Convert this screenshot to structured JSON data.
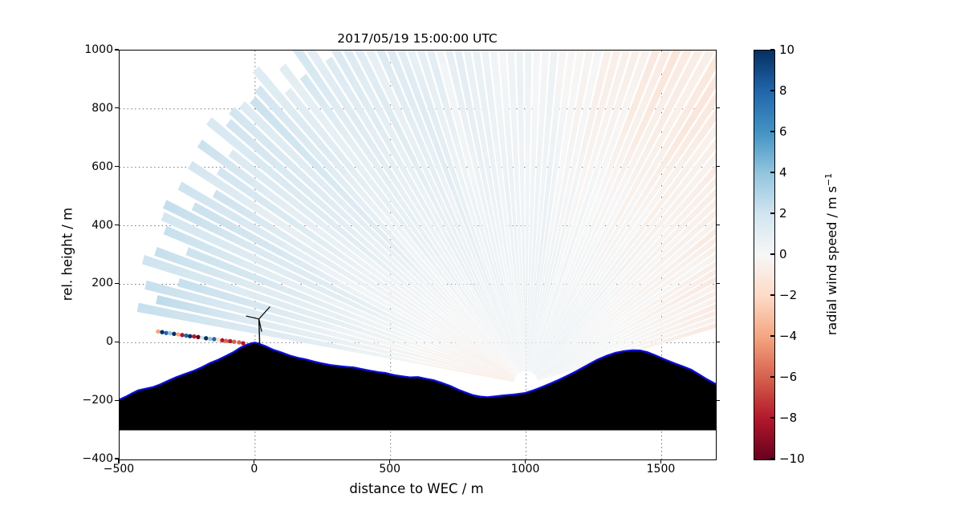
{
  "title": "2017/05/19 15:00:00 UTC",
  "x_axis": {
    "label": "distance to WEC / m",
    "tick_labels": [
      "−500",
      "0",
      "500",
      "1000",
      "1500"
    ],
    "tick_values": [
      -500,
      0,
      500,
      1000,
      1500
    ],
    "range": [
      -500,
      1700
    ]
  },
  "y_axis": {
    "label": "rel. height / m",
    "tick_labels": [
      "1000",
      "800",
      "600",
      "400",
      "200",
      "0",
      "−200",
      "−400"
    ],
    "tick_values": [
      1000,
      800,
      600,
      400,
      200,
      0,
      -200,
      -400
    ],
    "range": [
      -400,
      1000
    ]
  },
  "grid": {
    "x_values": [
      0,
      500,
      1000,
      1500
    ],
    "y_values": [
      800,
      600,
      400,
      200,
      0,
      -200
    ]
  },
  "colorbar": {
    "label": "radial wind speed / m s",
    "label_superscript": "−1",
    "tick_labels": [
      "10",
      "8",
      "6",
      "4",
      "2",
      "0",
      "−2",
      "−4",
      "−6",
      "−8",
      "−10"
    ],
    "tick_values": [
      10,
      8,
      6,
      4,
      2,
      0,
      -2,
      -4,
      -6,
      -8,
      -10
    ],
    "vmin": -10,
    "vmax": 10,
    "colormap_name": "RdBu",
    "colormap_stops": [
      [
        0.0,
        "#67001f"
      ],
      [
        0.1,
        "#b2182b"
      ],
      [
        0.2,
        "#d6604d"
      ],
      [
        0.3,
        "#f4a582"
      ],
      [
        0.4,
        "#fddbc7"
      ],
      [
        0.5,
        "#f7f7f7"
      ],
      [
        0.6,
        "#d1e5f0"
      ],
      [
        0.7,
        "#92c5de"
      ],
      [
        0.8,
        "#4393c3"
      ],
      [
        0.9,
        "#2166ac"
      ],
      [
        1.0,
        "#053061"
      ]
    ]
  },
  "chart_data": {
    "type": "heatmap",
    "subtype": "lidar-rhi-scan",
    "title": "2017/05/19 15:00:00 UTC",
    "xlabel": "distance to WEC / m",
    "ylabel": "rel. height / m",
    "xlim": [
      -500,
      1700
    ],
    "ylim": [
      -400,
      1000
    ],
    "grid": "dotted",
    "scan": {
      "origin_x_m": 1000,
      "origin_y_m": -142,
      "min_range_m": 45,
      "max_range_m": 1400,
      "elevation_start_deg": 16,
      "elevation_end_deg": 170.4,
      "beam_step_deg": 1.6,
      "beam_halfwidth_deg": 0.62,
      "radial_speed_profile": [
        {
          "deg": 172,
          "near": -1.0,
          "far": 2.3
        },
        {
          "deg": 150,
          "near": -0.6,
          "far": 2.0
        },
        {
          "deg": 130,
          "near": 0.0,
          "far": 1.5
        },
        {
          "deg": 110,
          "near": 0.3,
          "far": 1.0
        },
        {
          "deg": 95,
          "near": 0.4,
          "far": 0.5
        },
        {
          "deg": 80,
          "near": 0.5,
          "far": -0.2
        },
        {
          "deg": 65,
          "near": 0.6,
          "far": -0.9
        },
        {
          "deg": 45,
          "near": 0.7,
          "far": -1.4
        },
        {
          "deg": 28,
          "near": 0.5,
          "far": -1.7
        },
        {
          "deg": 16,
          "near": 0.3,
          "far": -1.8
        }
      ]
    },
    "terrain_profile": [
      [
        -500,
        -195
      ],
      [
        -472,
        -183
      ],
      [
        -450,
        -172
      ],
      [
        -430,
        -163
      ],
      [
        -400,
        -157
      ],
      [
        -376,
        -152
      ],
      [
        -350,
        -143
      ],
      [
        -317,
        -129
      ],
      [
        -290,
        -118
      ],
      [
        -258,
        -107
      ],
      [
        -225,
        -96
      ],
      [
        -198,
        -85
      ],
      [
        -168,
        -71
      ],
      [
        -139,
        -60
      ],
      [
        -108,
        -46
      ],
      [
        -80,
        -33
      ],
      [
        -55,
        -18
      ],
      [
        -30,
        -7
      ],
      [
        -12,
        -2
      ],
      [
        0,
        0
      ],
      [
        12,
        -3
      ],
      [
        38,
        -12
      ],
      [
        68,
        -25
      ],
      [
        98,
        -34
      ],
      [
        127,
        -44
      ],
      [
        158,
        -52
      ],
      [
        186,
        -57
      ],
      [
        218,
        -65
      ],
      [
        245,
        -71
      ],
      [
        278,
        -77
      ],
      [
        305,
        -80
      ],
      [
        336,
        -83
      ],
      [
        364,
        -85
      ],
      [
        395,
        -91
      ],
      [
        423,
        -96
      ],
      [
        455,
        -101
      ],
      [
        482,
        -104
      ],
      [
        512,
        -111
      ],
      [
        541,
        -115
      ],
      [
        571,
        -119
      ],
      [
        601,
        -118
      ],
      [
        632,
        -124
      ],
      [
        660,
        -129
      ],
      [
        692,
        -139
      ],
      [
        719,
        -148
      ],
      [
        752,
        -162
      ],
      [
        780,
        -172
      ],
      [
        805,
        -180
      ],
      [
        832,
        -185
      ],
      [
        858,
        -187
      ],
      [
        888,
        -184
      ],
      [
        917,
        -181
      ],
      [
        952,
        -178
      ],
      [
        994,
        -173
      ],
      [
        1028,
        -163
      ],
      [
        1053,
        -154
      ],
      [
        1088,
        -141
      ],
      [
        1124,
        -126
      ],
      [
        1158,
        -111
      ],
      [
        1183,
        -99
      ],
      [
        1222,
        -79
      ],
      [
        1260,
        -60
      ],
      [
        1295,
        -46
      ],
      [
        1330,
        -35
      ],
      [
        1362,
        -29
      ],
      [
        1395,
        -26
      ],
      [
        1420,
        -27
      ],
      [
        1448,
        -33
      ],
      [
        1478,
        -44
      ],
      [
        1510,
        -57
      ],
      [
        1547,
        -71
      ],
      [
        1580,
        -82
      ],
      [
        1610,
        -93
      ],
      [
        1640,
        -110
      ],
      [
        1668,
        -126
      ],
      [
        1700,
        -142
      ]
    ],
    "terrain_base_m": -300,
    "terrain_fill": "#000000",
    "terrain_edge_color": "#0d0dd8",
    "ground_returns": [
      {
        "x": -358,
        "y": 38,
        "color": "#f4a582"
      },
      {
        "x": -343,
        "y": 36,
        "color": "#053061"
      },
      {
        "x": -328,
        "y": 33,
        "color": "#2166ac"
      },
      {
        "x": -314,
        "y": 32,
        "color": "#92c5de"
      },
      {
        "x": -299,
        "y": 30,
        "color": "#053061"
      },
      {
        "x": -284,
        "y": 28,
        "color": "#f4a582"
      },
      {
        "x": -269,
        "y": 26,
        "color": "#b2182b"
      },
      {
        "x": -254,
        "y": 24,
        "color": "#2166ac"
      },
      {
        "x": -240,
        "y": 22,
        "color": "#053061"
      },
      {
        "x": -225,
        "y": 21,
        "color": "#b2182b"
      },
      {
        "x": -210,
        "y": 19,
        "color": "#67001f"
      },
      {
        "x": -195,
        "y": 17,
        "color": "#d1e5f0"
      },
      {
        "x": -181,
        "y": 15,
        "color": "#053061"
      },
      {
        "x": -166,
        "y": 13,
        "color": "#92c5de"
      },
      {
        "x": -151,
        "y": 12,
        "color": "#2166ac"
      },
      {
        "x": -136,
        "y": 10,
        "color": "#fddbc7"
      },
      {
        "x": -121,
        "y": 8,
        "color": "#b2182b"
      },
      {
        "x": -107,
        "y": 6,
        "color": "#d6604d"
      },
      {
        "x": -92,
        "y": 5,
        "color": "#b2182b"
      },
      {
        "x": -77,
        "y": 3,
        "color": "#d6604d"
      },
      {
        "x": -59,
        "y": 1,
        "color": "#d6604d"
      },
      {
        "x": -44,
        "y": -2,
        "color": "#b2182b"
      }
    ],
    "turbine": {
      "base": [
        17,
        -5
      ],
      "hub": [
        14,
        81
      ],
      "blade_tips": [
        [
          54,
          122
        ],
        [
          -32,
          91
        ],
        [
          24,
          39
        ]
      ],
      "color": "#111111"
    }
  }
}
